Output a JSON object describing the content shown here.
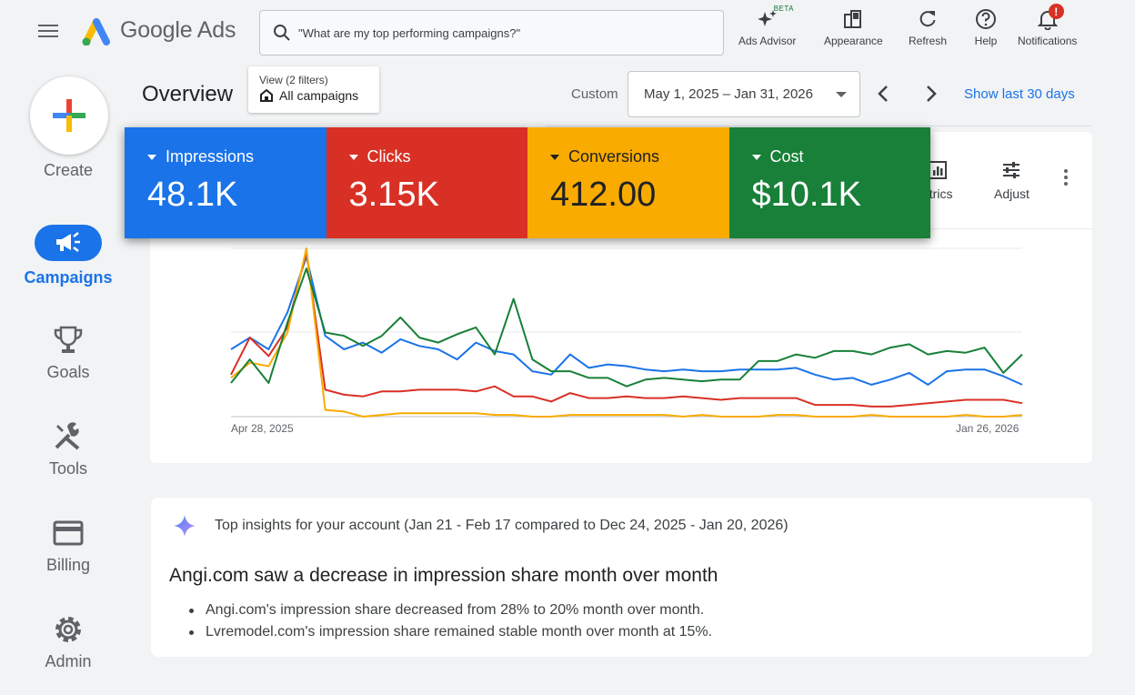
{
  "header": {
    "app_name": "Google Ads",
    "search_placeholder": "\"What are my top performing campaigns?\"",
    "tools": [
      {
        "label": "Ads Advisor",
        "icon": "sparkle-icon",
        "badge": "BETA"
      },
      {
        "label": "Appearance",
        "icon": "appearance-icon"
      },
      {
        "label": "Refresh",
        "icon": "refresh-icon"
      },
      {
        "label": "Help",
        "icon": "help-icon"
      },
      {
        "label": "Notifications",
        "icon": "bell-icon",
        "badge": "!"
      }
    ]
  },
  "sidebar": {
    "create_label": "Create",
    "items": [
      {
        "label": "Campaigns",
        "icon": "megaphone-icon",
        "active": true
      },
      {
        "label": "Goals",
        "icon": "trophy-icon"
      },
      {
        "label": "Tools",
        "icon": "tools-icon"
      },
      {
        "label": "Billing",
        "icon": "credit-card-icon"
      },
      {
        "label": "Admin",
        "icon": "gear-icon"
      }
    ]
  },
  "overview": {
    "title": "Overview",
    "view_filter_small": "View (2 filters)",
    "view_filter_main": "All campaigns",
    "custom_label": "Custom",
    "date_range": "May 1, 2025 – Jan 31, 2026",
    "show_last": "Show last 30 days"
  },
  "metrics": [
    {
      "name": "Impressions",
      "value": "48.1K",
      "color": "#1a73e8"
    },
    {
      "name": "Clicks",
      "value": "3.15K",
      "color": "#d93025"
    },
    {
      "name": "Conversions",
      "value": "412.00",
      "color": "#f9ab00"
    },
    {
      "name": "Cost",
      "value": "$10.1K",
      "color": "#188038"
    }
  ],
  "chart_tools": {
    "metrics_label": "etrics",
    "adjust_label": "Adjust"
  },
  "chart_data": {
    "type": "line",
    "x_start_label": "Apr 28, 2025",
    "x_end_label": "Jan 26, 2026",
    "series": [
      {
        "name": "Impressions",
        "color": "#1a73e8",
        "values": [
          0.4,
          0.47,
          0.4,
          0.62,
          0.95,
          0.48,
          0.4,
          0.44,
          0.38,
          0.46,
          0.42,
          0.4,
          0.34,
          0.44,
          0.39,
          0.37,
          0.27,
          0.25,
          0.37,
          0.29,
          0.31,
          0.3,
          0.28,
          0.27,
          0.28,
          0.27,
          0.27,
          0.28,
          0.28,
          0.28,
          0.29,
          0.25,
          0.22,
          0.23,
          0.19,
          0.22,
          0.26,
          0.19,
          0.27,
          0.28,
          0.28,
          0.24,
          0.19
        ]
      },
      {
        "name": "Clicks",
        "color": "#d93025",
        "values": [
          0.25,
          0.47,
          0.36,
          0.53,
          0.98,
          0.16,
          0.13,
          0.12,
          0.15,
          0.15,
          0.16,
          0.16,
          0.16,
          0.15,
          0.18,
          0.12,
          0.12,
          0.09,
          0.14,
          0.11,
          0.11,
          0.12,
          0.11,
          0.11,
          0.12,
          0.11,
          0.1,
          0.11,
          0.11,
          0.11,
          0.11,
          0.07,
          0.07,
          0.07,
          0.06,
          0.06,
          0.07,
          0.08,
          0.09,
          0.1,
          0.1,
          0.1,
          0.08
        ]
      },
      {
        "name": "Conversions",
        "color": "#f9ab00",
        "values": [
          0.23,
          0.32,
          0.3,
          0.5,
          1.0,
          0.04,
          0.03,
          0.0,
          0.01,
          0.02,
          0.02,
          0.02,
          0.02,
          0.02,
          0.01,
          0.01,
          0.0,
          0.0,
          0.01,
          0.01,
          0.01,
          0.01,
          0.01,
          0.01,
          0.0,
          0.01,
          0.0,
          0.0,
          0.0,
          0.01,
          0.01,
          0.0,
          0.0,
          0.0,
          0.01,
          0.0,
          0.0,
          0.0,
          0.0,
          0.01,
          0.0,
          0.0,
          0.01
        ]
      },
      {
        "name": "Cost",
        "color": "#188038",
        "values": [
          0.2,
          0.34,
          0.2,
          0.56,
          0.88,
          0.5,
          0.48,
          0.42,
          0.48,
          0.59,
          0.47,
          0.44,
          0.49,
          0.53,
          0.37,
          0.7,
          0.34,
          0.27,
          0.27,
          0.23,
          0.23,
          0.18,
          0.22,
          0.23,
          0.22,
          0.21,
          0.22,
          0.22,
          0.33,
          0.33,
          0.37,
          0.35,
          0.39,
          0.39,
          0.37,
          0.41,
          0.43,
          0.37,
          0.39,
          0.38,
          0.41,
          0.26,
          0.37
        ]
      }
    ],
    "ylim": [
      0,
      1
    ]
  },
  "insights": {
    "heading": "Top insights for your account (Jan 21 - Feb 17 compared to Dec 24, 2025 - Jan 20, 2026)",
    "title": "Angi.com saw a decrease in impression share month over month",
    "bullets": [
      "Angi.com's impression share decreased from 28% to 20% month over month.",
      "Lvremodel.com's impression share remained stable month over month at 15%."
    ]
  }
}
